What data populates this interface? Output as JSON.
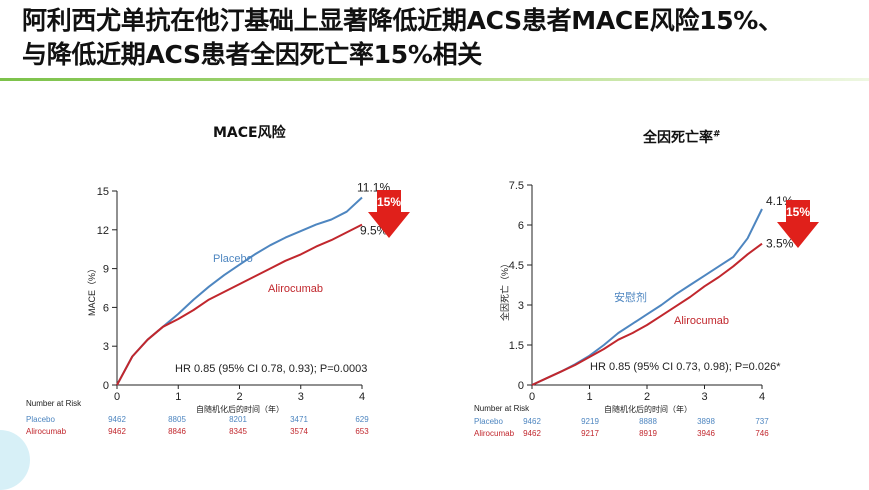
{
  "title_line1": "阿利西尤单抗在他汀基础上显著降低近期ACS患者MACE风险15%、",
  "title_line2": "与降低近期ACS患者全因死亡率15%相关",
  "colors": {
    "placebo": "#4e86c0",
    "alirocumab": "#c1272d",
    "badge": "#e0201b",
    "rule": "#7cc24a"
  },
  "chart_data": [
    {
      "type": "line",
      "title": "MACE风险",
      "xlabel": "自随机化后的时间（年）",
      "ylabel": "MACE（%）",
      "xlim": [
        0,
        4
      ],
      "ylim": [
        0,
        15
      ],
      "x_ticks": [
        "0",
        "1",
        "2",
        "3",
        "4"
      ],
      "y_ticks": [
        "0",
        "3",
        "6",
        "9",
        "12",
        "15"
      ],
      "series": [
        {
          "name": "Placebo",
          "color": "#4e86c0",
          "end_label": "11.1%",
          "x": [
            0,
            0.25,
            0.5,
            0.75,
            1,
            1.25,
            1.5,
            1.75,
            2,
            2.25,
            2.5,
            2.75,
            3,
            3.25,
            3.5,
            3.75,
            4
          ],
          "y": [
            0,
            2.2,
            3.5,
            4.5,
            5.5,
            6.6,
            7.6,
            8.5,
            9.3,
            10.1,
            10.8,
            11.4,
            11.9,
            12.4,
            12.8,
            13.4,
            14.5
          ]
        },
        {
          "name": "Alirocumab",
          "color": "#c1272d",
          "end_label": "9.5%",
          "x": [
            0,
            0.25,
            0.5,
            0.75,
            1,
            1.25,
            1.5,
            1.75,
            2,
            2.25,
            2.5,
            2.75,
            3,
            3.25,
            3.5,
            3.75,
            4
          ],
          "y": [
            0,
            2.2,
            3.5,
            4.5,
            5.1,
            5.8,
            6.6,
            7.2,
            7.8,
            8.4,
            9.0,
            9.6,
            10.1,
            10.7,
            11.2,
            11.8,
            12.4
          ]
        }
      ],
      "annotation": "HR 0.85 (95% CI 0.78, 0.93); P=0.0003",
      "badge": "15%",
      "risk_table": {
        "header": "Number at Risk",
        "rows": [
          {
            "label": "Placebo",
            "values": [
              "9462",
              "8805",
              "8201",
              "3471",
              "629"
            ]
          },
          {
            "label": "Alirocumab",
            "values": [
              "9462",
              "8846",
              "8345",
              "3574",
              "653"
            ]
          }
        ]
      }
    },
    {
      "type": "line",
      "title": "全因死亡率",
      "title_sup": "#",
      "xlabel": "自随机化后的时间（年）",
      "ylabel": "全因死亡（%）",
      "xlim": [
        0,
        4
      ],
      "ylim": [
        0,
        7.5
      ],
      "x_ticks": [
        "0",
        "1",
        "2",
        "3",
        "4"
      ],
      "y_ticks": [
        "0",
        "1.5",
        "3",
        "4.5",
        "6",
        "7.5"
      ],
      "series": [
        {
          "name": "安慰剂",
          "color": "#4e86c0",
          "end_label": "4.1%",
          "x": [
            0,
            0.25,
            0.5,
            0.75,
            1,
            1.25,
            1.5,
            1.75,
            2,
            2.25,
            2.5,
            2.75,
            3,
            3.25,
            3.5,
            3.75,
            4
          ],
          "y": [
            0,
            0.25,
            0.5,
            0.78,
            1.1,
            1.5,
            1.95,
            2.3,
            2.65,
            3.0,
            3.4,
            3.75,
            4.1,
            4.45,
            4.8,
            5.5,
            6.6
          ]
        },
        {
          "name": "Alirocumab",
          "color": "#c1272d",
          "end_label": "3.5%",
          "x": [
            0,
            0.25,
            0.5,
            0.75,
            1,
            1.25,
            1.5,
            1.75,
            2,
            2.25,
            2.5,
            2.75,
            3,
            3.25,
            3.5,
            3.75,
            4
          ],
          "y": [
            0,
            0.25,
            0.5,
            0.75,
            1.05,
            1.35,
            1.7,
            1.95,
            2.25,
            2.6,
            2.95,
            3.3,
            3.7,
            4.05,
            4.45,
            4.9,
            5.3
          ]
        }
      ],
      "annotation": "HR 0.85 (95% CI 0.73, 0.98); P=0.026*",
      "badge": "15%",
      "risk_table": {
        "header": "Number at Risk",
        "rows": [
          {
            "label": "Placebo",
            "values": [
              "9462",
              "9219",
              "8888",
              "3898",
              "737"
            ]
          },
          {
            "label": "Alirocumab",
            "values": [
              "9462",
              "9217",
              "8919",
              "3946",
              "746"
            ]
          }
        ]
      }
    }
  ]
}
